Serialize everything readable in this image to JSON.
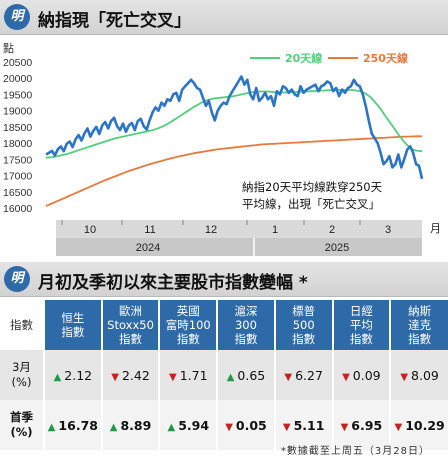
{
  "chart_header": {
    "badge": "明",
    "title": "納指現「死亡交叉」"
  },
  "table_header": {
    "badge": "明",
    "title": "月初及季初以來主要股市指數變幅 *"
  },
  "chart_data": {
    "type": "line",
    "title": "納指現「死亡交叉」",
    "ylabel": "點",
    "ylim": [
      16000,
      20500
    ],
    "yticks": [
      16000,
      16500,
      17000,
      17500,
      18000,
      18500,
      19000,
      19500,
      20000,
      20500
    ],
    "grid": false,
    "legend_position": "top-right",
    "x_month_labels": [
      "10",
      "11",
      "12",
      "1",
      "2",
      "3"
    ],
    "x_unit": "月",
    "year_labels": [
      "2024",
      "2025"
    ],
    "annotation": [
      "納指20天平均線跌穿250天",
      "平均線，出現「死亡交叉」"
    ],
    "series": [
      {
        "name": "納指",
        "color": "#2b74c9",
        "values": [
          17650,
          17700,
          17760,
          17620,
          17810,
          17900,
          17750,
          17980,
          18050,
          17880,
          18120,
          18250,
          18080,
          18300,
          18450,
          18200,
          18380,
          18500,
          18280,
          18550,
          18650,
          18450,
          18680,
          18780,
          18520,
          18400,
          18600,
          18350,
          18550,
          18620,
          18400,
          18680,
          18750,
          18520,
          18420,
          18700,
          18950,
          19100,
          19000,
          19250,
          19150,
          19350,
          19300,
          19500,
          19550,
          19300,
          19650,
          19750,
          19850,
          19950,
          19850,
          19700,
          19650,
          19400,
          19150,
          19300,
          18950,
          18700,
          19000,
          19150,
          19250,
          19200,
          19450,
          19600,
          19750,
          19900,
          20050,
          19800,
          19950,
          19500,
          19350,
          19700,
          19300,
          19400,
          19550,
          19350,
          19450,
          19150,
          19600,
          19500,
          19750,
          19700,
          19550,
          19650,
          19500,
          19450,
          19750,
          19550,
          19650,
          19700,
          19750,
          19800,
          19600,
          19750,
          19800,
          19900,
          19850,
          19600,
          19700,
          19450,
          19650,
          19550,
          19700,
          19750,
          19950,
          19800,
          19750,
          19500,
          19150,
          18700,
          18300,
          18150,
          18000,
          17700,
          17350,
          17450,
          17600,
          17250,
          17350,
          17650,
          17250,
          17500,
          17800,
          17900,
          17700,
          17350,
          17300,
          16900
        ]
      },
      {
        "name": "20天線",
        "color": "#4fd07a",
        "values": [
          17550,
          17560,
          17570,
          17580,
          17600,
          17620,
          17640,
          17660,
          17690,
          17720,
          17750,
          17780,
          17810,
          17840,
          17870,
          17900,
          17930,
          17960,
          17990,
          18020,
          18050,
          18080,
          18110,
          18140,
          18160,
          18180,
          18200,
          18220,
          18240,
          18260,
          18280,
          18300,
          18320,
          18340,
          18360,
          18380,
          18400,
          18430,
          18460,
          18500,
          18540,
          18590,
          18640,
          18700,
          18760,
          18820,
          18880,
          18940,
          19000,
          19060,
          19120,
          19170,
          19220,
          19270,
          19310,
          19340,
          19360,
          19380,
          19390,
          19400,
          19410,
          19420,
          19430,
          19440,
          19460,
          19480,
          19500,
          19520,
          19540,
          19560,
          19570,
          19580,
          19590,
          19590,
          19590,
          19590,
          19580,
          19570,
          19560,
          19560,
          19560,
          19560,
          19560,
          19570,
          19570,
          19580,
          19580,
          19590,
          19590,
          19600,
          19600,
          19610,
          19610,
          19620,
          19620,
          19630,
          19630,
          19640,
          19640,
          19640,
          19640,
          19640,
          19640,
          19640,
          19630,
          19620,
          19600,
          19570,
          19520,
          19460,
          19380,
          19280,
          19170,
          19050,
          18920,
          18790,
          18660,
          18530,
          18400,
          18270,
          18150,
          18040,
          17940,
          17860,
          17800,
          17770,
          17760,
          17750
        ]
      },
      {
        "name": "250天線",
        "color": "#e8793e",
        "values": [
          16060,
          16100,
          16140,
          16180,
          16220,
          16260,
          16300,
          16340,
          16380,
          16420,
          16460,
          16500,
          16540,
          16580,
          16620,
          16660,
          16700,
          16740,
          16780,
          16820,
          16860,
          16895,
          16930,
          16965,
          17000,
          17035,
          17070,
          17105,
          17140,
          17170,
          17200,
          17230,
          17260,
          17290,
          17320,
          17350,
          17375,
          17400,
          17425,
          17450,
          17475,
          17500,
          17525,
          17550,
          17570,
          17590,
          17610,
          17630,
          17650,
          17670,
          17690,
          17705,
          17720,
          17735,
          17750,
          17765,
          17780,
          17795,
          17810,
          17820,
          17830,
          17840,
          17850,
          17860,
          17870,
          17880,
          17890,
          17900,
          17910,
          17920,
          17930,
          17940,
          17950,
          17960,
          17965,
          17970,
          17975,
          17980,
          17985,
          17990,
          17995,
          18000,
          18005,
          18010,
          18015,
          18020,
          18025,
          18030,
          18035,
          18040,
          18045,
          18050,
          18055,
          18060,
          18065,
          18070,
          18075,
          18080,
          18085,
          18090,
          18095,
          18100,
          18105,
          18110,
          18115,
          18120,
          18125,
          18130,
          18135,
          18140,
          18145,
          18150,
          18155,
          18160,
          18165,
          18170,
          18175,
          18180,
          18185,
          18190,
          18195,
          18200,
          18200,
          18205,
          18205,
          18210,
          18210,
          18210
        ]
      }
    ]
  },
  "table": {
    "corner": "指數",
    "columns": [
      {
        "line1": "恒生",
        "line2": "指數"
      },
      {
        "line1": "歐洲",
        "line2": "Stoxx50",
        "line3": "指數"
      },
      {
        "line1": "英國",
        "line2": "富時100",
        "line3": "指數"
      },
      {
        "line1": "滬深",
        "line2": "300",
        "line3": "指數"
      },
      {
        "line1": "標普",
        "line2": "500",
        "line3": "指數"
      },
      {
        "line1": "日經",
        "line2": "平均",
        "line3": "指數"
      },
      {
        "line1": "納斯",
        "line2": "達克",
        "line3": "指數"
      }
    ],
    "rows": [
      {
        "label1": "3月",
        "label2": "(%)",
        "cells": [
          {
            "dir": "up",
            "value": "2.12"
          },
          {
            "dir": "down",
            "value": "2.42"
          },
          {
            "dir": "down",
            "value": "1.71"
          },
          {
            "dir": "up",
            "value": "0.65"
          },
          {
            "dir": "down",
            "value": "6.27"
          },
          {
            "dir": "down",
            "value": "0.09"
          },
          {
            "dir": "down",
            "value": "8.09"
          }
        ]
      },
      {
        "label1": "首季",
        "label2": "(%)",
        "cells": [
          {
            "dir": "up",
            "value": "16.78"
          },
          {
            "dir": "up",
            "value": "8.89"
          },
          {
            "dir": "up",
            "value": "5.94"
          },
          {
            "dir": "down",
            "value": "0.05"
          },
          {
            "dir": "down",
            "value": "5.11"
          },
          {
            "dir": "down",
            "value": "6.95"
          },
          {
            "dir": "down",
            "value": "10.29"
          }
        ]
      }
    ],
    "up_symbol": "▲",
    "down_symbol": "▼",
    "up_color": "#1f9a47",
    "down_color": "#c8201d"
  },
  "footnote": "*數據截至上周五（3月28日）"
}
